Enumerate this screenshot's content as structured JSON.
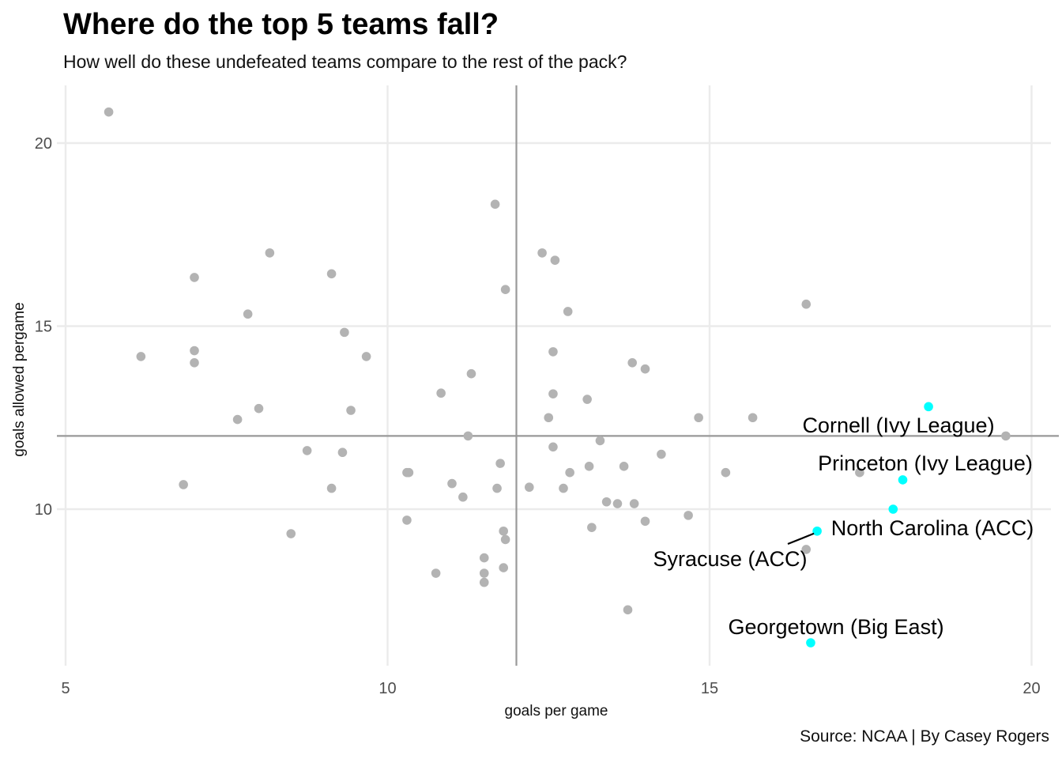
{
  "title": "Where do the top 5 teams fall?",
  "subtitle": "How well do these undefeated teams compare to the rest of the pack?",
  "caption": "Source: NCAA | By Casey Rogers",
  "colors": {
    "point": "#b3b3b3",
    "highlight": "#00ffff",
    "grid": "#ebebeb",
    "refline": "#999999",
    "text": "#000000",
    "tick": "#4d4d4d"
  },
  "chart_data": {
    "type": "scatter",
    "xlabel": "goals per game",
    "ylabel": "goals allowed pergame",
    "xlim": [
      5,
      20.4
    ],
    "ylim": [
      5.8,
      21.5
    ],
    "x_ticks": [
      5,
      10,
      15,
      20
    ],
    "y_ticks": [
      10,
      15,
      20
    ],
    "grid": true,
    "reference_lines": {
      "x": 12,
      "y": 12
    },
    "points": [
      [
        5.67,
        20.85
      ],
      [
        6.17,
        14.17
      ],
      [
        6.83,
        10.67
      ],
      [
        7.0,
        16.33
      ],
      [
        7.0,
        14.33
      ],
      [
        7.0,
        14.0
      ],
      [
        7.67,
        12.45
      ],
      [
        7.83,
        15.33
      ],
      [
        8.0,
        12.75
      ],
      [
        8.17,
        17.0
      ],
      [
        8.5,
        9.33
      ],
      [
        8.75,
        11.6
      ],
      [
        9.13,
        16.43
      ],
      [
        9.13,
        10.57
      ],
      [
        9.3,
        11.55
      ],
      [
        9.33,
        14.83
      ],
      [
        9.43,
        12.7
      ],
      [
        9.67,
        14.17
      ],
      [
        10.3,
        11.0
      ],
      [
        10.33,
        11.0
      ],
      [
        10.3,
        9.7
      ],
      [
        10.75,
        8.25
      ],
      [
        10.83,
        13.17
      ],
      [
        11.0,
        10.7
      ],
      [
        11.17,
        10.33
      ],
      [
        11.25,
        12.0
      ],
      [
        11.3,
        13.7
      ],
      [
        11.5,
        8.67
      ],
      [
        11.5,
        8.25
      ],
      [
        11.5,
        8.0
      ],
      [
        11.67,
        18.33
      ],
      [
        11.7,
        10.57
      ],
      [
        11.75,
        11.25
      ],
      [
        11.8,
        9.4
      ],
      [
        11.83,
        9.17
      ],
      [
        11.8,
        8.4
      ],
      [
        11.83,
        16.0
      ],
      [
        12.2,
        10.6
      ],
      [
        12.4,
        17.0
      ],
      [
        12.5,
        12.5
      ],
      [
        12.57,
        14.3
      ],
      [
        12.57,
        11.7
      ],
      [
        12.57,
        13.15
      ],
      [
        12.6,
        16.8
      ],
      [
        12.73,
        10.57
      ],
      [
        12.8,
        15.4
      ],
      [
        12.83,
        11.0
      ],
      [
        13.1,
        13.0
      ],
      [
        13.13,
        11.17
      ],
      [
        13.17,
        9.5
      ],
      [
        13.3,
        11.87
      ],
      [
        13.4,
        10.2
      ],
      [
        13.57,
        10.15
      ],
      [
        13.67,
        11.17
      ],
      [
        13.73,
        7.25
      ],
      [
        13.8,
        14.0
      ],
      [
        13.83,
        10.15
      ],
      [
        14.0,
        13.83
      ],
      [
        14.0,
        9.67
      ],
      [
        14.25,
        11.5
      ],
      [
        14.67,
        9.83
      ],
      [
        14.83,
        12.5
      ],
      [
        15.25,
        11.0
      ],
      [
        15.67,
        12.5
      ],
      [
        16.5,
        15.6
      ],
      [
        16.5,
        8.9
      ],
      [
        17.33,
        11.0
      ],
      [
        19.6,
        12.0
      ]
    ],
    "highlighted": [
      {
        "label": "Cornell (Ivy League)",
        "x": 18.4,
        "y": 12.8
      },
      {
        "label": "Princeton (Ivy League)",
        "x": 18.0,
        "y": 10.8
      },
      {
        "label": "North Carolina (ACC)",
        "x": 17.85,
        "y": 10.0
      },
      {
        "label": "Syracuse (ACC)",
        "x": 16.67,
        "y": 9.4
      },
      {
        "label": "Georgetown (Big East)",
        "x": 16.57,
        "y": 6.35
      }
    ]
  }
}
